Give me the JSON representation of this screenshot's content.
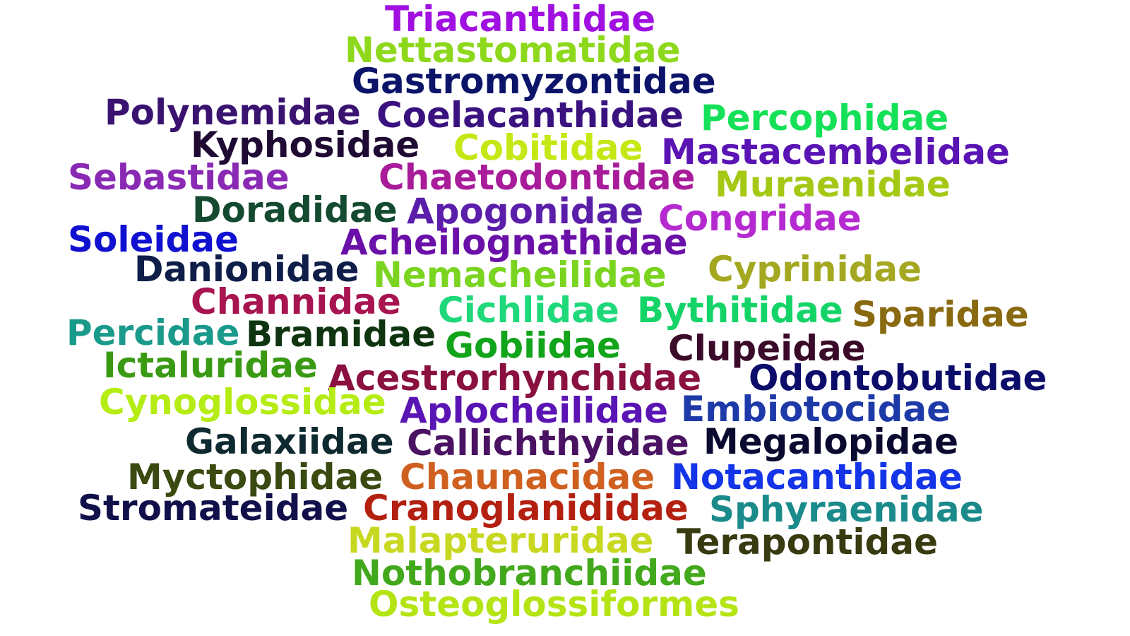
{
  "words": [
    {
      "text": "Triacanthidae",
      "color": "#a010e0"
    },
    {
      "text": "Nettastomatidae",
      "color": "#8ed81c"
    },
    {
      "text": "Gastromyzontidae",
      "color": "#0c146a"
    },
    {
      "text": "Polynemidae",
      "color": "#3a1270"
    },
    {
      "text": "Coelacanthidae",
      "color": "#3a1280"
    },
    {
      "text": "Percophidae",
      "color": "#14e058"
    },
    {
      "text": "Kyphosidae",
      "color": "#1e0a32"
    },
    {
      "text": "Cobitidae",
      "color": "#c4e814"
    },
    {
      "text": "Mastacembelidae",
      "color": "#5a14b4"
    },
    {
      "text": "Sebastidae",
      "color": "#8a2ab4"
    },
    {
      "text": "Chaetodontidae",
      "color": "#a81c9a"
    },
    {
      "text": "Muraenidae",
      "color": "#a4c814"
    },
    {
      "text": "Doradidae",
      "color": "#144a30"
    },
    {
      "text": "Apogonidae",
      "color": "#5a1eaa"
    },
    {
      "text": "Congridae",
      "color": "#b42ad0"
    },
    {
      "text": "Soleidae",
      "color": "#1010d0"
    },
    {
      "text": "Acheilognathidae",
      "color": "#6a10a8"
    },
    {
      "text": "Danionidae",
      "color": "#0e1e48"
    },
    {
      "text": "Nemacheilidae",
      "color": "#7ad420"
    },
    {
      "text": "Cyprinidae",
      "color": "#a4a820"
    },
    {
      "text": "Channidae",
      "color": "#a81450"
    },
    {
      "text": "Cichlidae",
      "color": "#1ed87a"
    },
    {
      "text": "Bythitidae",
      "color": "#14d468"
    },
    {
      "text": "Sparidae",
      "color": "#8a6a10"
    },
    {
      "text": "Percidae",
      "color": "#1a9a8a"
    },
    {
      "text": "Bramidae",
      "color": "#0e3410"
    },
    {
      "text": "Gobiidae",
      "color": "#12a41a"
    },
    {
      "text": "Clupeidae",
      "color": "#3a0a28"
    },
    {
      "text": "Ictaluridae",
      "color": "#3a9a14"
    },
    {
      "text": "Acestrorhynchidae",
      "color": "#8a1040"
    },
    {
      "text": "Odontobutidae",
      "color": "#0c0c6a"
    },
    {
      "text": "Cynoglossidae",
      "color": "#b4ec14"
    },
    {
      "text": "Aplocheilidae",
      "color": "#5a14b4"
    },
    {
      "text": "Embiotocidae",
      "color": "#1e3aa8"
    },
    {
      "text": "Galaxiidae",
      "color": "#0e2a30"
    },
    {
      "text": "Callichthyidae",
      "color": "#4a1262"
    },
    {
      "text": "Megalopidae",
      "color": "#0a0a30"
    },
    {
      "text": "Myctophidae",
      "color": "#3a4a10"
    },
    {
      "text": "Chaunacidae",
      "color": "#d06020"
    },
    {
      "text": "Notacanthidae",
      "color": "#1434e8"
    },
    {
      "text": "Stromateidae",
      "color": "#12104a"
    },
    {
      "text": "Cranoglanididae",
      "color": "#b42010"
    },
    {
      "text": "Sphyraenidae",
      "color": "#1a8a8a"
    },
    {
      "text": "Malapteruridae",
      "color": "#c8d820"
    },
    {
      "text": "Terapontidae",
      "color": "#383a10"
    },
    {
      "text": "Nothobranchiidae",
      "color": "#42a81c"
    },
    {
      "text": "Osteoglossiformes",
      "color": "#b4e414"
    }
  ]
}
